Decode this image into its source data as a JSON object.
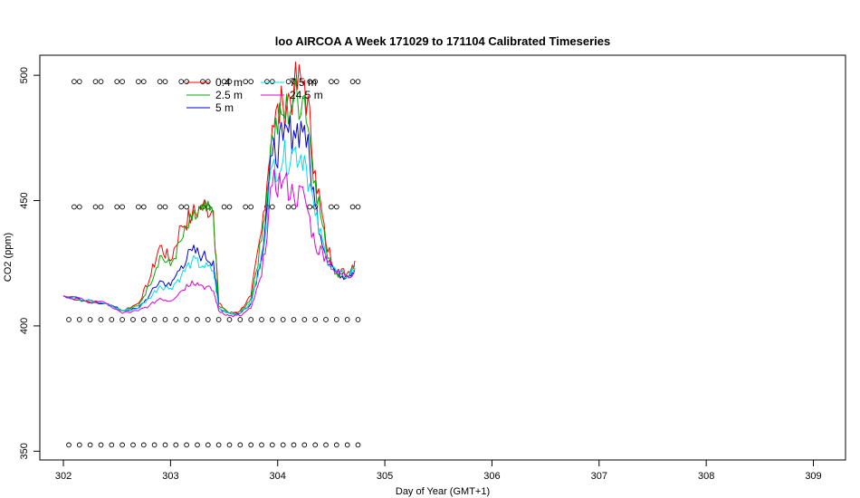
{
  "chart_data": {
    "type": "line",
    "title": "loo AIRCOA A  Week 171029 to 171104  Calibrated Timeseries",
    "xlabel": "Day of Year (GMT+1)",
    "ylabel": "CO2 (ppm)",
    "xlim": [
      301.78,
      309.3
    ],
    "ylim": [
      346.5,
      508
    ],
    "x_ticks": [
      "302",
      "303",
      "304",
      "305",
      "306",
      "307",
      "308",
      "309"
    ],
    "y_ticks": [
      "350",
      "400",
      "450",
      "500"
    ],
    "legend_position": "top-left",
    "legend_columns": 2,
    "series": [
      {
        "name": "0.4 m",
        "color": "#ff0000",
        "x": [
          302.0,
          302.2,
          302.4,
          302.55,
          302.7,
          302.8,
          302.9,
          303.0,
          303.1,
          303.2,
          303.3,
          303.4,
          303.45,
          303.55,
          303.65,
          303.75,
          303.85,
          303.95,
          304.05,
          304.15,
          304.25,
          304.35,
          304.45,
          304.55,
          304.65,
          304.72
        ],
        "y": [
          412,
          410,
          409,
          406,
          409,
          418,
          432,
          426,
          440,
          444,
          448,
          446,
          409,
          405,
          406,
          412,
          438,
          480,
          488,
          494,
          498,
          462,
          433,
          422,
          421,
          426
        ]
      },
      {
        "name": "2.5 m",
        "color": "#00aa00",
        "x": [
          302.0,
          302.2,
          302.4,
          302.55,
          302.7,
          302.8,
          302.9,
          303.0,
          303.1,
          303.2,
          303.3,
          303.4,
          303.45,
          303.55,
          303.65,
          303.75,
          303.85,
          303.95,
          304.05,
          304.15,
          304.25,
          304.35,
          304.45,
          304.55,
          304.65,
          304.72
        ],
        "y": [
          412,
          410,
          409,
          406,
          408,
          416,
          428,
          424,
          434,
          442,
          446,
          444,
          408,
          405,
          405,
          411,
          434,
          476,
          484,
          490,
          492,
          458,
          431,
          421,
          420,
          424
        ]
      },
      {
        "name": "5 m",
        "color": "#0000dd",
        "x": [
          302.0,
          302.2,
          302.4,
          302.55,
          302.7,
          302.8,
          302.9,
          303.0,
          303.1,
          303.2,
          303.3,
          303.4,
          303.45,
          303.55,
          303.65,
          303.75,
          303.85,
          303.95,
          304.05,
          304.15,
          304.25,
          304.35,
          304.45,
          304.55,
          304.65,
          304.72
        ],
        "y": [
          412,
          410,
          409,
          406,
          407,
          412,
          418,
          416,
          424,
          430,
          428,
          426,
          407,
          405,
          405,
          409,
          428,
          468,
          474,
          478,
          480,
          448,
          428,
          421,
          420,
          423
        ]
      },
      {
        "name": "7.5 m",
        "color": "#00e0e0",
        "x": [
          302.0,
          302.2,
          302.4,
          302.55,
          302.7,
          302.8,
          302.9,
          303.0,
          303.1,
          303.2,
          303.3,
          303.4,
          303.45,
          303.55,
          303.65,
          303.75,
          303.85,
          303.95,
          304.05,
          304.15,
          304.25,
          304.35,
          304.45,
          304.55,
          304.65,
          304.72
        ],
        "y": [
          412,
          410,
          409,
          406,
          407,
          411,
          416,
          415,
          420,
          426,
          424,
          422,
          407,
          405,
          405,
          409,
          426,
          464,
          466,
          470,
          468,
          444,
          428,
          421,
          420,
          423
        ]
      },
      {
        "name": "24.5 m",
        "color": "#dd00dd",
        "x": [
          302.0,
          302.2,
          302.4,
          302.55,
          302.7,
          302.8,
          302.9,
          303.0,
          303.1,
          303.2,
          303.3,
          303.4,
          303.45,
          303.55,
          303.65,
          303.75,
          303.85,
          303.95,
          304.05,
          304.15,
          304.25,
          304.35,
          304.45,
          304.55,
          304.65,
          304.72
        ],
        "y": [
          412,
          410,
          409,
          405,
          406,
          408,
          411,
          410,
          414,
          418,
          416,
          414,
          406,
          404,
          404,
          407,
          420,
          456,
          458,
          452,
          452,
          432,
          428,
          421,
          420,
          422
        ]
      }
    ],
    "marker_rows": [
      {
        "y": 497.5,
        "x": [
          302.1,
          302.15,
          302.3,
          302.35,
          302.5,
          302.55,
          302.7,
          302.75,
          302.9,
          302.95,
          303.1,
          303.15,
          303.3,
          303.35,
          303.5,
          303.55,
          303.7,
          303.75,
          303.9,
          303.95,
          304.1,
          304.15,
          304.3,
          304.35,
          304.5,
          304.55,
          304.7,
          304.75
        ]
      },
      {
        "y": 447.5,
        "x": [
          302.1,
          302.15,
          302.3,
          302.35,
          302.5,
          302.55,
          302.7,
          302.75,
          302.9,
          302.95,
          303.1,
          303.15,
          303.3,
          303.35,
          303.5,
          303.55,
          303.7,
          303.75,
          303.9,
          303.95,
          304.1,
          304.15,
          304.3,
          304.35,
          304.5,
          304.55,
          304.7,
          304.75
        ]
      },
      {
        "y": 402.5,
        "x": [
          302.05,
          302.15,
          302.25,
          302.35,
          302.45,
          302.55,
          302.65,
          302.75,
          302.85,
          302.95,
          303.05,
          303.15,
          303.25,
          303.35,
          303.45,
          303.55,
          303.65,
          303.75,
          303.85,
          303.95,
          304.05,
          304.15,
          304.25,
          304.35,
          304.45,
          304.55,
          304.65,
          304.75
        ]
      },
      {
        "y": 352.5,
        "x": [
          302.05,
          302.15,
          302.25,
          302.35,
          302.45,
          302.55,
          302.65,
          302.75,
          302.85,
          302.95,
          303.05,
          303.15,
          303.25,
          303.35,
          303.45,
          303.55,
          303.65,
          303.75,
          303.85,
          303.95,
          304.05,
          304.15,
          304.25,
          304.35,
          304.45,
          304.55,
          304.65,
          304.75
        ]
      }
    ]
  }
}
